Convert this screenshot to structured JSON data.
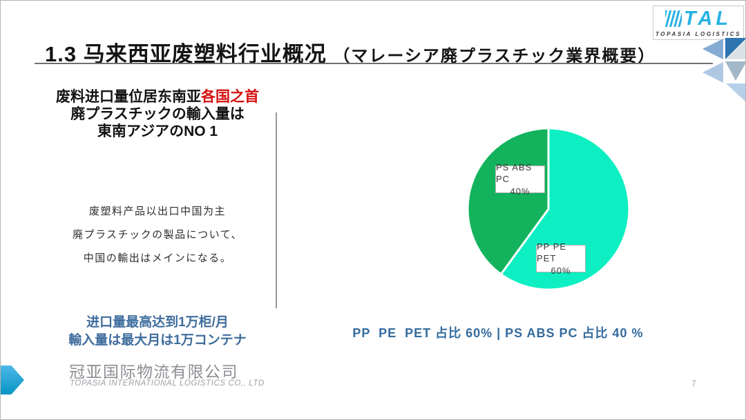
{
  "header": {
    "title_main": "1.3 马来西亚废塑料行业概况",
    "title_sub": "（マレーシア廃プラスチック業界概要）"
  },
  "brand": {
    "logo_text": "TAL",
    "logo_subtitle": "TOPASIA LOGISTICS",
    "logo_color": "#27b2e2"
  },
  "left_panel": {
    "headline_line1_prefix": "废料进口量位居东南亚",
    "headline_line1_highlight": "各国之首",
    "headline_highlight_color": "#d60d0d",
    "headline_line2": "廃プラスチックの輸入量は",
    "headline_line3": "東南アジアのNO 1",
    "body_lines": [
      "废塑料产品以出口中国为主",
      "廃プラスチックの製品について、",
      "中国の輸出はメインになる。"
    ],
    "stat_line1": "进口量最高达到1万柜/月",
    "stat_line2": "輸入量は最大月は1万コンテナ",
    "stat_color": "#3e6c9c"
  },
  "chart_data": {
    "type": "pie",
    "title": "",
    "start_angle_deg": 0,
    "direction": "clockwise",
    "labels_inside": true,
    "separator_color": "#ffffff",
    "slices": [
      {
        "label": "PP PE PET",
        "value": 60,
        "value_label": "60%",
        "color": "#0defc2"
      },
      {
        "label": "PS ABS PC",
        "value": 40,
        "value_label": "40%",
        "color": "#12b35c"
      }
    ]
  },
  "caption": {
    "text": "PP  PE  PET 占比 60% | PS ABS PC 占比 40 %",
    "color": "#336b9e"
  },
  "footer": {
    "company_zh": "冠亚国际物流有限公司",
    "company_en": "TOPASIA INTERNATIONAL LOGISTICS CO,. LTD",
    "page_number": "7"
  }
}
